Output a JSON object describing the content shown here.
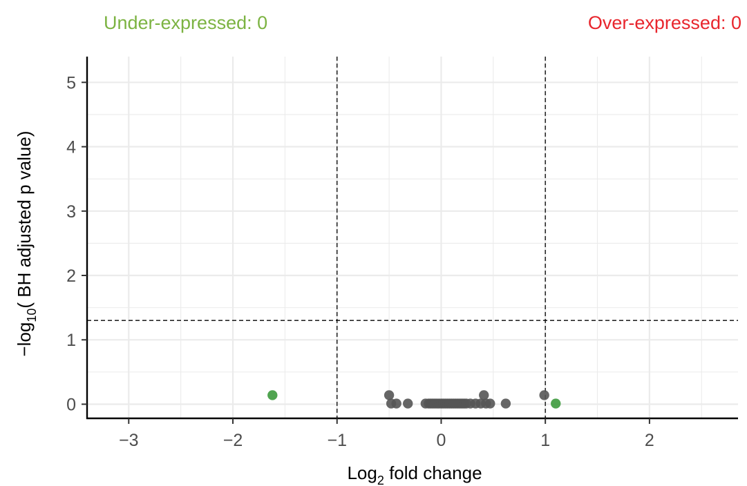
{
  "annotations": {
    "under": {
      "prefix": "Under-expressed: ",
      "count": "0"
    },
    "over": {
      "prefix": "Over-expressed: ",
      "count": "0"
    }
  },
  "chart_data": {
    "type": "scatter",
    "xlabel": {
      "main": "Log",
      "sub": "2",
      "rest": " fold change"
    },
    "ylabel": {
      "main": "−log",
      "sub": "10",
      "rest": "( BH adjusted p value)"
    },
    "xlim": [
      -3.4,
      2.85
    ],
    "ylim": [
      -0.22,
      5.4
    ],
    "x_ticks": [
      -3,
      -2,
      -1,
      0,
      1,
      2
    ],
    "x_tick_labels": [
      "−3",
      "−2",
      "−1",
      "0",
      "1",
      "2"
    ],
    "y_ticks": [
      0,
      1,
      2,
      3,
      4,
      5
    ],
    "y_tick_labels": [
      "0",
      "1",
      "2",
      "3",
      "4",
      "5"
    ],
    "grid": true,
    "thresholds": {
      "fold_change": [
        -1,
        1
      ],
      "neg_log10_p": 1.301
    },
    "colors": {
      "under": "#7cb342",
      "over": "#e8262d",
      "not_significant": "#555555",
      "fold_only": "#3d9a3d",
      "grid": "#ebebeb"
    },
    "series": [
      {
        "group": "not_significant",
        "x": [
          -0.5,
          -0.48,
          -0.43,
          -0.32,
          -0.15,
          -0.12,
          -0.1,
          -0.08,
          -0.06,
          -0.04,
          -0.02,
          0.0,
          0.02,
          0.04,
          0.06,
          0.08,
          0.1,
          0.12,
          0.14,
          0.16,
          0.18,
          0.2,
          0.22,
          0.24,
          0.28,
          0.33,
          0.38,
          0.41,
          0.43,
          0.47,
          0.62,
          0.99
        ],
        "y": [
          0.14,
          0.01,
          0.01,
          0.01,
          0.01,
          0.01,
          0.01,
          0.01,
          0.01,
          0.01,
          0.01,
          0.01,
          0.01,
          0.01,
          0.01,
          0.01,
          0.01,
          0.01,
          0.01,
          0.01,
          0.01,
          0.01,
          0.01,
          0.01,
          0.01,
          0.01,
          0.01,
          0.14,
          0.01,
          0.01,
          0.01,
          0.14
        ]
      },
      {
        "group": "fold_only",
        "x": [
          -1.62,
          1.1
        ],
        "y": [
          0.14,
          0.01
        ]
      }
    ]
  }
}
